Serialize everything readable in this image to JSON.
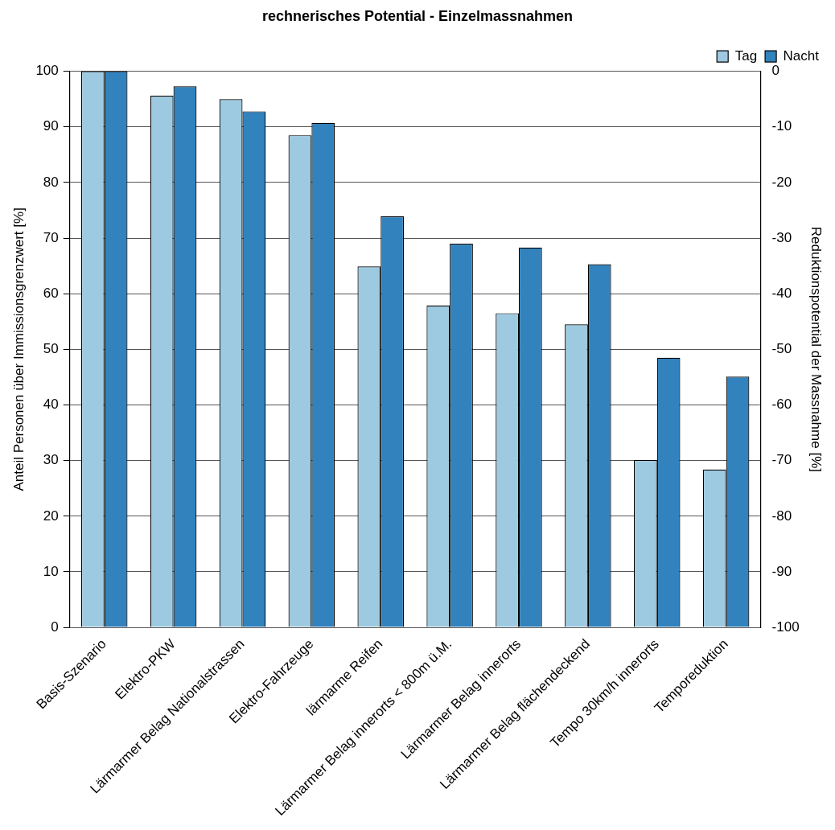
{
  "chart_data": {
    "type": "bar",
    "title": "rechnerisches Potential - Einzelmassnahmen",
    "categories": [
      "Basis-Szenario",
      "Elektro-PKW",
      "Lärmarmer Belag Nationalstrassen",
      "Elektro-Fahrzeuge",
      "lärmarme Reifen",
      "Lärmarmer Belag innerorts < 800m ü.M.",
      "Lärmarmer Belag innerorts",
      "Lärmarmer Belag flächendeckend",
      "Tempo 30km/h innerorts",
      "Temporeduktion"
    ],
    "series": [
      {
        "name": "Tag",
        "color": "#9ecae1",
        "values": [
          100,
          95.6,
          95.0,
          88.5,
          64.9,
          57.9,
          56.5,
          54.5,
          30.1,
          28.4
        ]
      },
      {
        "name": "Nacht",
        "color": "#3182bd",
        "values": [
          100,
          97.3,
          92.8,
          90.7,
          73.9,
          69.0,
          68.3,
          65.3,
          48.5,
          45.1
        ]
      }
    ],
    "ylabel": "Anteil Personen über Immissionsgrenzwert [%]",
    "y2label": "Reduktionspotential der Massnahme [%]",
    "ylim": [
      0,
      100
    ],
    "yticks": [
      0,
      10,
      20,
      30,
      40,
      50,
      60,
      70,
      80,
      90,
      100
    ],
    "y2lim": [
      -100,
      0
    ],
    "y2ticks": [
      -100,
      -90,
      -80,
      -70,
      -60,
      -50,
      -40,
      -30,
      -20,
      -10,
      0
    ],
    "grid": "y",
    "legend": "top right"
  }
}
